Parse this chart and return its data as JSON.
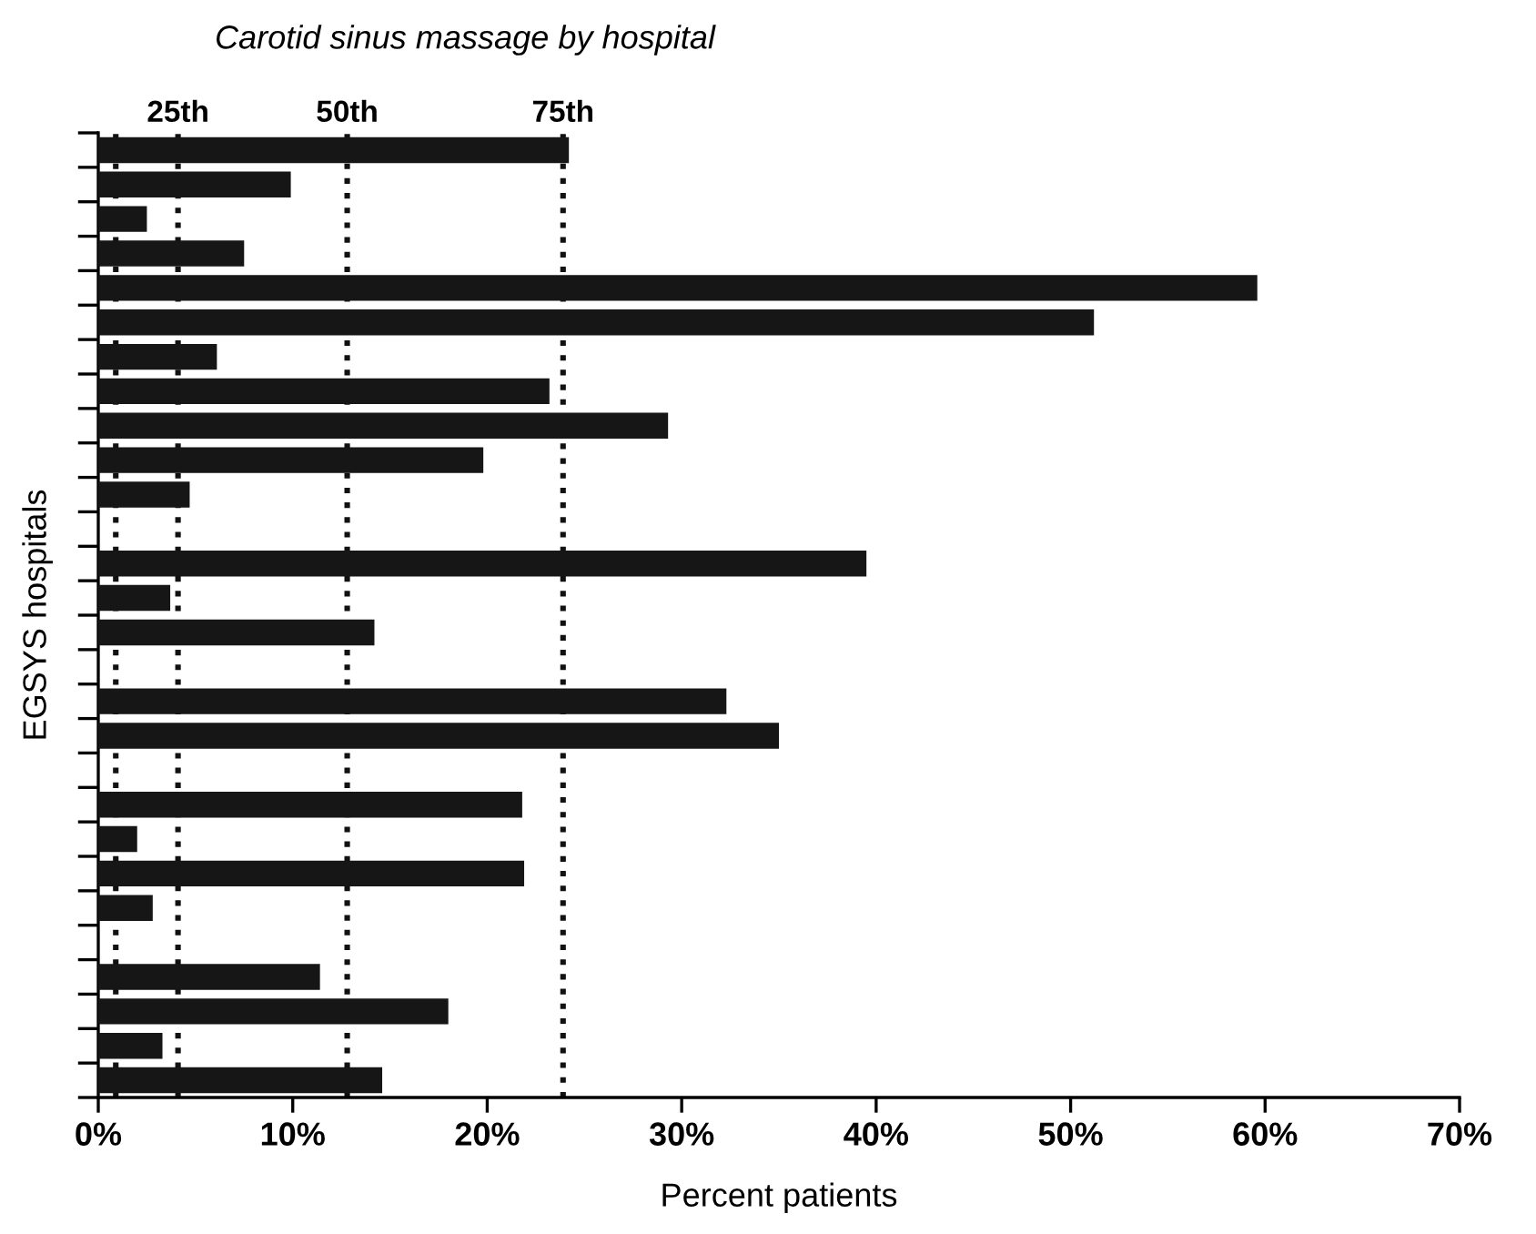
{
  "chart_data": {
    "type": "bar",
    "orientation": "horizontal",
    "title": "Carotid sinus massage by hospital",
    "xlabel": "Percent patients",
    "ylabel": "EGSYS hospitals",
    "categories": [
      null,
      null,
      null,
      null,
      null,
      null,
      null,
      null,
      null,
      null,
      null,
      null,
      null,
      null,
      null,
      null,
      null,
      null,
      null,
      null,
      null,
      null,
      null,
      null,
      null,
      null,
      null,
      null
    ],
    "values": [
      24.2,
      9.9,
      2.5,
      7.5,
      59.6,
      51.2,
      6.1,
      23.2,
      29.3,
      19.8,
      4.7,
      0,
      39.5,
      3.7,
      14.2,
      0,
      32.3,
      35.0,
      0,
      21.8,
      2.0,
      21.9,
      2.8,
      0,
      11.4,
      18.0,
      3.3,
      14.6
    ],
    "color": "#161616",
    "xlim": [
      0,
      70
    ],
    "xticks": [
      {
        "value": 0,
        "label": "0%"
      },
      {
        "value": 10,
        "label": "10%"
      },
      {
        "value": 20,
        "label": "20%"
      },
      {
        "value": 30,
        "label": "30%"
      },
      {
        "value": 40,
        "label": "40%"
      },
      {
        "value": 50,
        "label": "50%"
      },
      {
        "value": 60,
        "label": "60%"
      },
      {
        "value": 70,
        "label": "70%"
      }
    ],
    "tick_labels": "x",
    "grid": false,
    "ref_lines": [
      {
        "axis": "x",
        "value": 0.9,
        "label": null,
        "color": "#111111",
        "line_style": "dotted"
      },
      {
        "axis": "x",
        "value": 4.1,
        "label": "25th",
        "color": "#111111",
        "line_style": "dotted"
      },
      {
        "axis": "x",
        "value": 12.8,
        "label": "50th",
        "color": "#111111",
        "line_style": "dotted"
      },
      {
        "axis": "x",
        "value": 23.9,
        "label": "75th",
        "color": "#111111",
        "line_style": "dotted"
      }
    ]
  }
}
